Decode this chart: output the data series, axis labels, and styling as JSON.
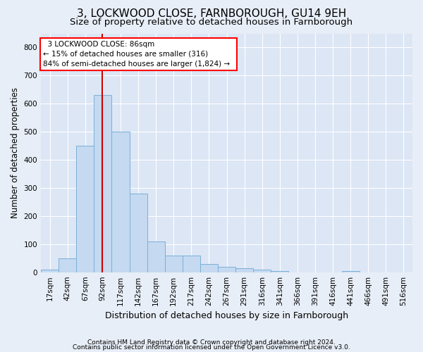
{
  "title1": "3, LOCKWOOD CLOSE, FARNBOROUGH, GU14 9EH",
  "title2": "Size of property relative to detached houses in Farnborough",
  "xlabel": "Distribution of detached houses by size in Farnborough",
  "ylabel": "Number of detached properties",
  "footer1": "Contains HM Land Registry data © Crown copyright and database right 2024.",
  "footer2": "Contains public sector information licensed under the Open Government Licence v3.0.",
  "bin_labels": [
    "17sqm",
    "42sqm",
    "67sqm",
    "92sqm",
    "117sqm",
    "142sqm",
    "167sqm",
    "192sqm",
    "217sqm",
    "242sqm",
    "267sqm",
    "291sqm",
    "316sqm",
    "341sqm",
    "366sqm",
    "391sqm",
    "416sqm",
    "441sqm",
    "466sqm",
    "491sqm",
    "516sqm"
  ],
  "bar_heights": [
    10,
    50,
    450,
    630,
    500,
    280,
    110,
    60,
    60,
    30,
    20,
    15,
    10,
    5,
    0,
    0,
    0,
    5,
    0,
    0,
    0
  ],
  "bar_color": "#c5d9f0",
  "bar_edge_color": "#7ab0d8",
  "vline_color": "#cc0000",
  "vline_x_bin": 2.96,
  "property_label": "3 LOCKWOOD CLOSE: 86sqm",
  "annotation_line1": "← 15% of detached houses are smaller (316)",
  "annotation_line2": "84% of semi-detached houses are larger (1,824) →",
  "ylim": [
    0,
    850
  ],
  "yticks": [
    0,
    100,
    200,
    300,
    400,
    500,
    600,
    700,
    800
  ],
  "bg_color": "#e8eef7",
  "axes_bg_color": "#dce6f5",
  "grid_color": "#ffffff",
  "title1_fontsize": 11,
  "title2_fontsize": 9.5,
  "xlabel_fontsize": 9,
  "ylabel_fontsize": 8.5,
  "tick_fontsize": 7.5,
  "footer_fontsize": 6.5
}
